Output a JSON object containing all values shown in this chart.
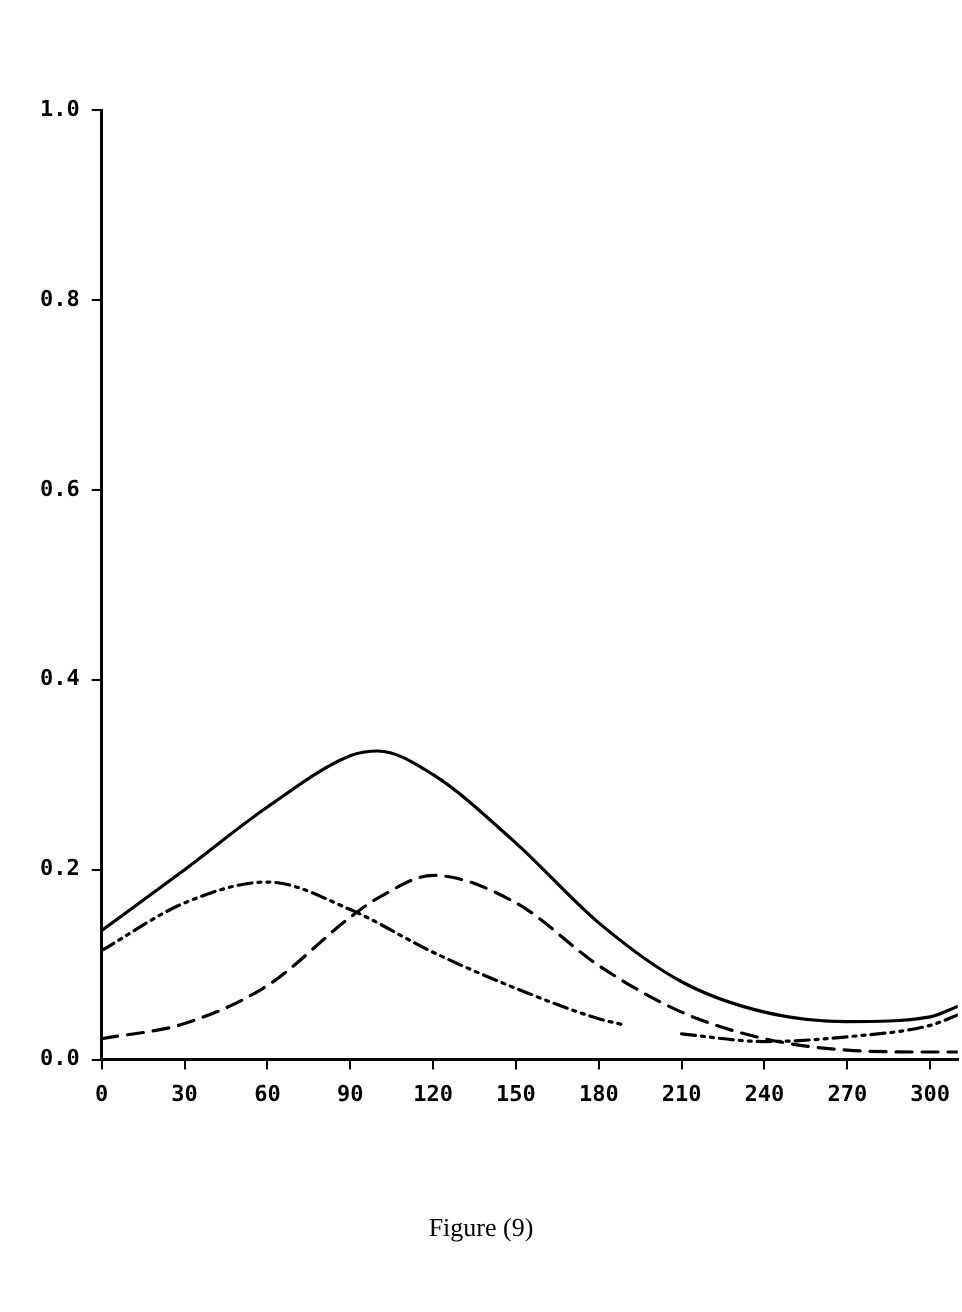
{
  "chart_data": {
    "type": "line",
    "x": [
      0,
      30,
      60,
      90,
      100,
      120,
      150,
      180,
      210,
      240,
      270,
      300,
      310
    ],
    "series": [
      {
        "color": "#000000",
        "line_style": "solid",
        "values": [
          0.136,
          0.2,
          0.266,
          0.32,
          0.325,
          0.3,
          0.228,
          0.144,
          0.082,
          0.05,
          0.04,
          0.045,
          0.056
        ]
      },
      {
        "color": "#000000",
        "line_style": "dashed",
        "values": [
          0.022,
          0.038,
          0.078,
          0.15,
          0.17,
          0.194,
          0.165,
          0.099,
          0.05,
          0.022,
          0.01,
          0.008,
          0.008
        ]
      },
      {
        "color": "#000000",
        "line_style": "dotted",
        "x": [
          0,
          30,
          60,
          90,
          120,
          150,
          180,
          190,
          200,
          210,
          240,
          270,
          300,
          310
        ],
        "values": [
          0.115,
          0.165,
          0.187,
          0.158,
          0.113,
          0.075,
          0.043,
          0.036,
          null,
          0.027,
          0.019,
          0.024,
          0.036,
          0.047
        ]
      }
    ],
    "xlim": [
      0,
      310
    ],
    "xticks": [
      0,
      30,
      60,
      90,
      120,
      150,
      180,
      210,
      240,
      270,
      300
    ],
    "ylim": [
      0,
      1
    ],
    "yticks": [
      {
        "value": 0,
        "label": "0.0"
      },
      {
        "value": 0.2,
        "label": "0.2"
      },
      {
        "value": 0.4,
        "label": "0.4"
      },
      {
        "value": 0.6,
        "label": "0.6"
      },
      {
        "value": 0.8,
        "label": "0.8"
      },
      {
        "value": 1,
        "label": "1.0"
      }
    ],
    "grid": false,
    "legend": false,
    "marker": "none",
    "annotations": [
      "Figure (9)"
    ]
  }
}
